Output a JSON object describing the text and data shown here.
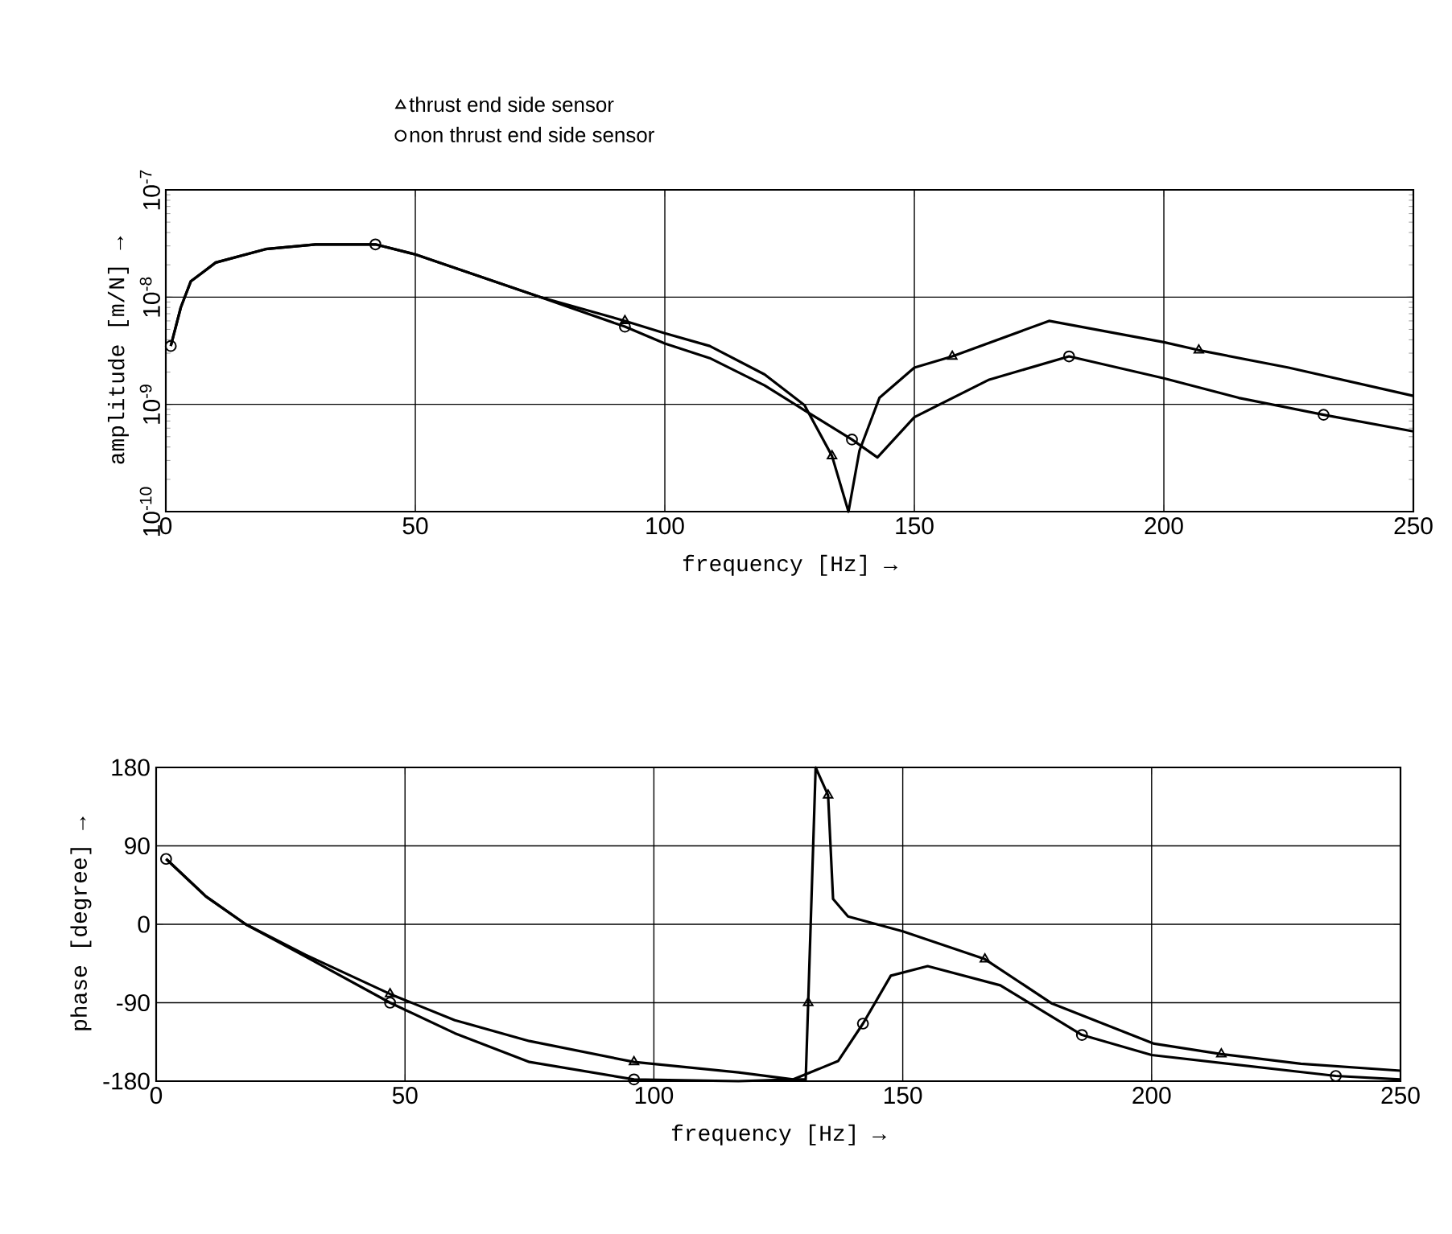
{
  "chart_data": [
    {
      "type": "line",
      "xlabel": "frequency [Hz] →",
      "ylabel": "amplitude [m/N] →",
      "log": "y",
      "grid": true,
      "legend": "top",
      "xlim": [
        0,
        250
      ],
      "xticks": [
        0,
        50,
        100,
        150,
        200,
        250
      ],
      "ylim": [
        1e-10,
        1e-07
      ],
      "yticks": [
        {
          "value": 1e-10,
          "label": "10$^{-10}$"
        },
        {
          "value": 1e-09,
          "label": "10$^{-9}$"
        },
        {
          "value": 1e-08,
          "label": "10$^{-8}$"
        },
        {
          "value": 1e-07,
          "label": "10$^{-7}$"
        }
      ],
      "series": [
        {
          "type": "line",
          "color": "#000000",
          "x": [
            1,
            3,
            5,
            10,
            20,
            30,
            42,
            50,
            75,
            92,
            100,
            109,
            120,
            128,
            133.5,
            136.8,
            139,
            143,
            150,
            157.6,
            177,
            200,
            207,
            225,
            250
          ],
          "values": [
            3.5e-09,
            8e-09,
            1.4e-08,
            2.1e-08,
            2.8e-08,
            3.1e-08,
            3.1e-08,
            2.5e-08,
            1e-08,
            6e-09,
            4.6e-09,
            3.5e-09,
            1.9e-09,
            9.8e-10,
            3.3e-10,
            1e-10,
            3.7e-10,
            1.15e-09,
            2.2e-09,
            2.8e-09,
            6e-09,
            3.8e-09,
            3.2e-09,
            2.2e-09,
            1.2e-09
          ]
        },
        {
          "type": "line",
          "color": "#000000",
          "x": [
            1,
            3,
            5,
            10,
            20,
            30,
            42,
            50,
            75,
            92,
            100,
            109,
            120,
            128,
            137.5,
            142.6,
            150,
            165,
            181,
            200,
            215,
            232,
            250
          ],
          "values": [
            3.5e-09,
            8e-09,
            1.4e-08,
            2.1e-08,
            2.8e-08,
            3.1e-08,
            3.1e-08,
            2.5e-08,
            1e-08,
            5.3e-09,
            3.7e-09,
            2.7e-09,
            1.5e-09,
            8.8e-10,
            4.7e-10,
            3.2e-10,
            7.6e-10,
            1.7e-09,
            2.8e-09,
            1.75e-09,
            1.15e-09,
            8e-10,
            5.6e-10
          ]
        },
        {
          "type": "scatter",
          "name": "thrust end side sensor",
          "marker": "triangle",
          "color": "#000000",
          "x": [
            92,
            133.5,
            157.6,
            207
          ],
          "values": [
            6e-09,
            3.3e-10,
            2.8e-09,
            3.2e-09
          ]
        },
        {
          "type": "scatter",
          "name": "non thrust end side sensor",
          "marker": "circle",
          "color": "#000000",
          "x": [
            1,
            42,
            92,
            137.5,
            181,
            232
          ],
          "values": [
            3.5e-09,
            3.1e-08,
            5.3e-09,
            4.7e-10,
            2.8e-09,
            8e-10
          ]
        }
      ]
    },
    {
      "type": "line",
      "xlabel": "frequency [Hz] →",
      "ylabel": "phase [degree] →",
      "grid": true,
      "xlim": [
        0,
        250
      ],
      "xticks": [
        0,
        50,
        100,
        150,
        200,
        250
      ],
      "ylim": [
        -180,
        180
      ],
      "yticks": [
        -180,
        -90,
        0,
        90,
        180
      ],
      "series": [
        {
          "type": "line",
          "color": "#000000",
          "x": [
            2,
            10,
            18,
            30,
            47,
            60,
            75,
            96,
            117,
            128,
            130.5,
            131,
            132.5,
            135,
            136,
            139,
            150,
            166.5,
            180,
            200.5,
            214,
            230,
            250
          ],
          "values": [
            75,
            32,
            0,
            -35,
            -80,
            -110,
            -134,
            -158,
            -170,
            -178,
            -178,
            -90,
            180,
            148,
            29,
            9,
            -8,
            -40,
            -91,
            -137,
            -149,
            -160,
            -168
          ]
        },
        {
          "type": "line",
          "color": "#000000",
          "x": [
            2,
            10,
            18,
            30,
            47,
            60,
            75,
            96,
            117,
            128,
            137,
            142,
            147.6,
            155,
            169.6,
            186,
            200,
            237,
            250
          ],
          "values": [
            75,
            32,
            0,
            -37,
            -90,
            -125,
            -158,
            -178,
            -180,
            -178,
            -157,
            -114,
            -59,
            -48,
            -70,
            -127,
            -150,
            -174,
            -178
          ]
        },
        {
          "type": "scatter",
          "marker": "triangle",
          "color": "#000000",
          "x": [
            47,
            96,
            131,
            135,
            166.5,
            214
          ],
          "values": [
            -80,
            -158,
            -90,
            148,
            -40,
            -149
          ]
        },
        {
          "type": "scatter",
          "marker": "circle",
          "color": "#000000",
          "x": [
            2,
            47,
            96,
            142,
            186,
            237
          ],
          "values": [
            75,
            -90,
            -178,
            -114,
            -127,
            -174
          ]
        }
      ]
    }
  ]
}
